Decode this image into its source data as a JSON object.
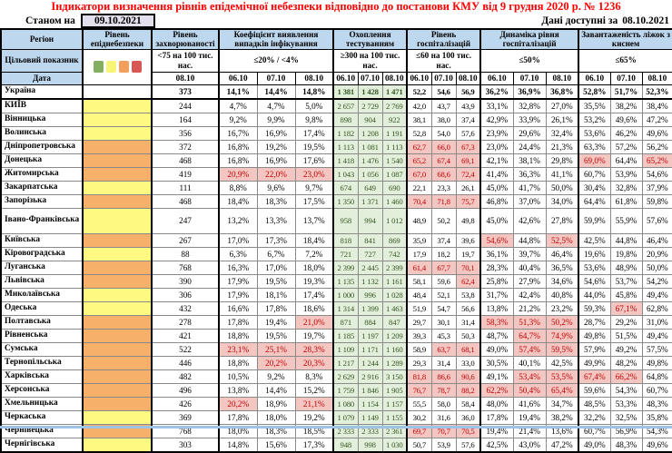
{
  "title": "Індикатори визначення рівнів епідемічної небезпеки відповідно до постанови КМУ від 9 грудня 2020 р. № 1236",
  "meta": {
    "as_of_label": "Станом на",
    "as_of_date": "09.10.2021",
    "available_label": "Дані доступні за",
    "available_date": "08.10.2021"
  },
  "colors": {
    "title_red": "#FF0000",
    "header_blue": "#BDD7EE",
    "asof_box_bg": "#E4DFEC",
    "level_yellow": "#FDF981",
    "level_orange": "#F7B06A",
    "testing_bg": "#E2EFDA",
    "testing_text": "#375623",
    "alert_bg": "#F3C6C2",
    "alert_text": "#C00000",
    "legend_green": "#84AE60",
    "legend_yellow": "#F8F575",
    "legend_orange": "#F3A05C",
    "legend_red": "#D95752",
    "bottom_strip": "#9DC3E6"
  },
  "table": {
    "col_groups": [
      {
        "title": "Регіон",
        "target": "Цільовий показник",
        "date_label": "Дата"
      },
      {
        "title": "Рівень епіднебезпеки"
      },
      {
        "title": "Рівень захворюваності",
        "target": "<75 на 100 тис. нас.",
        "dates": [
          "08.10"
        ]
      },
      {
        "title": "Коефіцієнт виявлення випадків інфікування",
        "target": "≤20% / <4%",
        "dates": [
          "06.10",
          "07.10",
          "08.10"
        ]
      },
      {
        "title": "Охоплення тестуванням",
        "target": "≥300 на 100 тис. нас.",
        "dates": [
          "06.10",
          "07.10",
          "08.10"
        ]
      },
      {
        "title": "Рівень госпіталізацій",
        "target": "≤60 на 100 тис. нас.",
        "dates": [
          "06.10",
          "07.10",
          "08.10"
        ]
      },
      {
        "title": "Динаміка рівня госпіталізацій",
        "target": "≤50%",
        "dates": [
          "06.10",
          "07.10",
          "08.10"
        ]
      },
      {
        "title": "Завантаженість ліжок з киснем",
        "target": "≤65%",
        "dates": [
          "06.10",
          "07.10",
          "08.10"
        ]
      }
    ],
    "rows": [
      {
        "region": "Україна",
        "level": null,
        "bold": true,
        "incidence": "373",
        "detection": [
          "14,1%",
          "14,4%",
          "14,8%"
        ],
        "testing": [
          "1 381",
          "1 428",
          "1 471"
        ],
        "hosp": [
          "52,2",
          "54,6",
          "56,9"
        ],
        "dyn": [
          "36,2%",
          "36,9%",
          "36,8%"
        ],
        "beds": [
          "52,8%",
          "51,7%",
          "52,3%"
        ]
      },
      {
        "region": "КИЇВ",
        "level": "yellow",
        "incidence": "244",
        "detection": [
          "4,7%",
          "4,7%",
          "5,0%"
        ],
        "testing": [
          "2 657",
          "2 729",
          "2 769"
        ],
        "hosp": [
          "42,0",
          "43,7",
          "43,9"
        ],
        "dyn": [
          "33,1%",
          "32,8%",
          "27,0%"
        ],
        "beds": [
          "35,5%",
          "38,2%",
          "38,4%"
        ]
      },
      {
        "region": "Вінницька",
        "level": "yellow",
        "incidence": "164",
        "detection": [
          "9,2%",
          "9,9%",
          "9,8%"
        ],
        "testing": [
          "898",
          "904",
          "922"
        ],
        "hosp": [
          "38,1",
          "38,0",
          "37,4"
        ],
        "dyn": [
          "42,9%",
          "33,9%",
          "26,1%"
        ],
        "beds": [
          "53,2%",
          "49,6%",
          "47,2%"
        ]
      },
      {
        "region": "Волинська",
        "level": "yellow",
        "incidence": "356",
        "detection": [
          "16,7%",
          "16,9%",
          "17,4%"
        ],
        "testing": [
          "1 182",
          "1 208",
          "1 191"
        ],
        "hosp": [
          "52,8",
          "54,0",
          "57,6"
        ],
        "dyn": [
          "23,9%",
          "29,6%",
          "32,4%"
        ],
        "beds": [
          "53,6%",
          "46,2%",
          "49,6%"
        ]
      },
      {
        "region": "Дніпропетровська",
        "level": "orange",
        "incidence": "372",
        "detection": [
          "16,8%",
          "19,2%",
          "19,5%"
        ],
        "testing": [
          "1 113",
          "1 081",
          "1 113"
        ],
        "hosp": [
          {
            "v": "62,7",
            "a": 1
          },
          {
            "v": "66,0",
            "a": 1
          },
          {
            "v": "67,3",
            "a": 1
          }
        ],
        "dyn": [
          "23,0%",
          "24,4%",
          "21,3%"
        ],
        "beds": [
          "63,3%",
          "57,2%",
          "56,2%"
        ]
      },
      {
        "region": "Донецька",
        "level": "orange",
        "incidence": "468",
        "detection": [
          "16,8%",
          "16,9%",
          "17,6%"
        ],
        "testing": [
          "1 418",
          "1 476",
          "1 540"
        ],
        "hosp": [
          {
            "v": "65,2",
            "a": 1
          },
          {
            "v": "67,4",
            "a": 1
          },
          {
            "v": "69,1",
            "a": 1
          }
        ],
        "dyn": [
          "42,1%",
          "38,1%",
          "29,8%"
        ],
        "beds": [
          {
            "v": "69,0%",
            "a": 1
          },
          "64,4%",
          {
            "v": "65,2%",
            "a": 1
          }
        ]
      },
      {
        "region": "Житомирська",
        "level": "orange",
        "incidence": "419",
        "detection": [
          {
            "v": "20,9%",
            "a": 1
          },
          {
            "v": "22,0%",
            "a": 1
          },
          {
            "v": "23,0%",
            "a": 1
          }
        ],
        "testing": [
          "1 043",
          "1 056",
          "1 087"
        ],
        "hosp": [
          {
            "v": "67,0",
            "a": 1
          },
          {
            "v": "68,6",
            "a": 1
          },
          {
            "v": "72,4",
            "a": 1
          }
        ],
        "dyn": [
          "41,4%",
          "36,3%",
          "41,1%"
        ],
        "beds": [
          "60,7%",
          "53,9%",
          "54,6%"
        ]
      },
      {
        "region": "Закарпатська",
        "level": "yellow",
        "incidence": "111",
        "detection": [
          "8,8%",
          "9,6%",
          "9,7%"
        ],
        "testing": [
          "674",
          "649",
          "690"
        ],
        "hosp": [
          "22,1",
          "23,3",
          "26,1"
        ],
        "dyn": [
          "45,0%",
          "41,7%",
          "50,0%"
        ],
        "beds": [
          "30,4%",
          "32,8%",
          "37,9%"
        ]
      },
      {
        "region": "Запорізька",
        "level": "orange",
        "incidence": "468",
        "detection": [
          "18,4%",
          "18,3%",
          "17,5%"
        ],
        "testing": [
          "1 350",
          "1 371",
          "1 460"
        ],
        "hosp": [
          {
            "v": "70,4",
            "a": 1
          },
          {
            "v": "71,8",
            "a": 1
          },
          {
            "v": "75,7",
            "a": 1
          }
        ],
        "dyn": [
          "46,8%",
          "37,0%",
          "34,0%"
        ],
        "beds": [
          "64,4%",
          "61,8%",
          "59,8%"
        ]
      },
      {
        "region": "Івано-Франківська",
        "level": "yellow",
        "tall": true,
        "incidence": "247",
        "detection": [
          "13,2%",
          "13,3%",
          "13,7%"
        ],
        "testing": [
          "958",
          "994",
          "1 012"
        ],
        "hosp": [
          "48,9",
          "50,2",
          "49,8"
        ],
        "dyn": [
          "45,0%",
          "42,6%",
          "27,8%"
        ],
        "beds": [
          "59,9%",
          "55,9%",
          "57,6%"
        ]
      },
      {
        "region": "Київська",
        "level": "orange",
        "incidence": "267",
        "detection": [
          "17,0%",
          "17,3%",
          "18,4%"
        ],
        "testing": [
          "818",
          "841",
          "869"
        ],
        "hosp": [
          "35,9",
          "37,4",
          "39,6"
        ],
        "dyn": [
          {
            "v": "54,6%",
            "a": 1
          },
          "44,8%",
          {
            "v": "52,5%",
            "a": 1
          }
        ],
        "beds": [
          "42,5%",
          "44,8%",
          "46,4%"
        ]
      },
      {
        "region": "Кіровоградська",
        "level": "yellow",
        "incidence": "88",
        "detection": [
          "6,3%",
          "6,7%",
          "7,2%"
        ],
        "testing": [
          "721",
          "727",
          "742"
        ],
        "hosp": [
          "17,9",
          "18,2",
          "19,7"
        ],
        "dyn": [
          "36,1%",
          "39,7%",
          "46,4%"
        ],
        "beds": [
          "19,6%",
          "19,8%",
          "20,9%"
        ]
      },
      {
        "region": "Луганська",
        "level": "orange",
        "incidence": "768",
        "detection": [
          "16,3%",
          "17,0%",
          "18,0%"
        ],
        "testing": [
          "2 399",
          "2 445",
          "2 399"
        ],
        "hosp": [
          {
            "v": "61,4",
            "a": 1
          },
          {
            "v": "67,7",
            "a": 1
          },
          {
            "v": "70,1",
            "a": 1
          }
        ],
        "dyn": [
          "28,3%",
          "40,4%",
          "36,5%"
        ],
        "beds": [
          "53,6%",
          "48,9%",
          "50,0%"
        ]
      },
      {
        "region": "Львівська",
        "level": "orange",
        "incidence": "390",
        "detection": [
          "17,9%",
          "19,5%",
          "19,3%"
        ],
        "testing": [
          "1 135",
          "1 132",
          "1 161"
        ],
        "hosp": [
          "58,1",
          "59,6",
          {
            "v": "62,4",
            "a": 1
          }
        ],
        "dyn": [
          "25,8%",
          "27,9%",
          "34,6%"
        ],
        "beds": [
          "54,6%",
          "53,7%",
          "54,2%"
        ]
      },
      {
        "region": "Миколаївська",
        "level": "yellow",
        "incidence": "306",
        "detection": [
          "17,9%",
          "18,1%",
          "17,4%"
        ],
        "testing": [
          "1 000",
          "996",
          "1 028"
        ],
        "hosp": [
          "48,4",
          "52,1",
          "53,8"
        ],
        "dyn": [
          "31,7%",
          "42,4%",
          "40,8%"
        ],
        "beds": [
          "44,0%",
          "45,8%",
          "49,4%"
        ]
      },
      {
        "region": "Одеська",
        "level": "yellow",
        "incidence": "432",
        "detection": [
          "16,6%",
          "17,8%",
          "18,6%"
        ],
        "testing": [
          "1 314",
          "1 399",
          "1 463"
        ],
        "hosp": [
          "51,9",
          "54,7",
          "56,6"
        ],
        "dyn": [
          "13,8%",
          "21,2%",
          "23,2%"
        ],
        "beds": [
          "59,3%",
          {
            "v": "67,1%",
            "a": 1
          },
          "62,8%"
        ]
      },
      {
        "region": "Полтавська",
        "level": "orange",
        "incidence": "278",
        "detection": [
          "17,8%",
          "19,4%",
          {
            "v": "21,0%",
            "a": 1
          }
        ],
        "testing": [
          "871",
          "884",
          "847"
        ],
        "hosp": [
          "29,7",
          "30,1",
          "31,4"
        ],
        "dyn": [
          {
            "v": "58,3%",
            "a": 1
          },
          {
            "v": "51,3%",
            "a": 1
          },
          {
            "v": "50,2%",
            "a": 1
          }
        ],
        "beds": [
          "28,7%",
          "29,2%",
          "31,0%"
        ]
      },
      {
        "region": "Рівненська",
        "level": "orange",
        "incidence": "421",
        "detection": [
          "18,8%",
          "19,5%",
          "19,7%"
        ],
        "testing": [
          "1 185",
          "1 197",
          "1 209"
        ],
        "hosp": [
          "39,3",
          "45,3",
          "50,3"
        ],
        "dyn": [
          "48,7%",
          {
            "v": "64,7%",
            "a": 1
          },
          {
            "v": "74,9%",
            "a": 1
          }
        ],
        "beds": [
          "49,8%",
          "51,5%",
          "49,4%"
        ]
      },
      {
        "region": "Сумська",
        "level": "orange",
        "incidence": "522",
        "detection": [
          {
            "v": "23,1%",
            "a": 1
          },
          {
            "v": "25,1%",
            "a": 1
          },
          {
            "v": "28,3%",
            "a": 1
          }
        ],
        "testing": [
          "1 109",
          "1 171",
          "1 160"
        ],
        "hosp": [
          "58,9",
          {
            "v": "63,7",
            "a": 1
          },
          {
            "v": "68,1",
            "a": 1
          }
        ],
        "dyn": [
          "49,0%",
          {
            "v": "57,4%",
            "a": 1
          },
          {
            "v": "59,5%",
            "a": 1
          }
        ],
        "beds": [
          "57,9%",
          "49,2%",
          "57,5%"
        ]
      },
      {
        "region": "Тернопільська",
        "level": "orange",
        "incidence": "446",
        "detection": [
          "18,8%",
          {
            "v": "20,2%",
            "a": 1
          },
          {
            "v": "20,3%",
            "a": 1
          }
        ],
        "testing": [
          "1 217",
          "1 244",
          "1 289"
        ],
        "hosp": [
          "29,3",
          "31,4",
          "33,0"
        ],
        "dyn": [
          "30,5%",
          "40,1%",
          "42,5%"
        ],
        "beds": [
          "49,9%",
          "48,2%",
          "49,8%"
        ]
      },
      {
        "region": "Харківська",
        "level": "orange",
        "incidence": "482",
        "detection": [
          "10,5%",
          "9,2%",
          "8,3%"
        ],
        "testing": [
          "2 629",
          "2 916",
          "3 150"
        ],
        "hosp": [
          {
            "v": "81,8",
            "a": 1
          },
          {
            "v": "86,6",
            "a": 1
          },
          {
            "v": "90,6",
            "a": 1
          }
        ],
        "dyn": [
          "49,1%",
          {
            "v": "53,4%",
            "a": 1
          },
          {
            "v": "53,5%",
            "a": 1
          }
        ],
        "beds": [
          {
            "v": "67,4%",
            "a": 1
          },
          {
            "v": "66,2%",
            "a": 1
          },
          "64,8%"
        ]
      },
      {
        "region": "Херсонська",
        "level": "orange",
        "incidence": "496",
        "detection": [
          "13,8%",
          "14,4%",
          "15,2%"
        ],
        "testing": [
          "1 759",
          "1 846",
          "1 905"
        ],
        "hosp": [
          {
            "v": "76,7",
            "a": 1
          },
          {
            "v": "78,7",
            "a": 1
          },
          {
            "v": "88,2",
            "a": 1
          }
        ],
        "dyn": [
          {
            "v": "62,2%",
            "a": 1
          },
          {
            "v": "50,4%",
            "a": 1
          },
          {
            "v": "65,4%",
            "a": 1
          }
        ],
        "beds": [
          "59,6%",
          "54,3%",
          "60,7%"
        ]
      },
      {
        "region": "Хмельницька",
        "level": "orange",
        "incidence": "426",
        "detection": [
          {
            "v": "20,2%",
            "a": 1
          },
          "18,9%",
          {
            "v": "21,1%",
            "a": 1
          }
        ],
        "testing": [
          "1 080",
          "1 154",
          "1 157"
        ],
        "hosp": [
          "55,5",
          "58,0",
          "58,4"
        ],
        "dyn": [
          "48,0%",
          "41,6%",
          "34,7%"
        ],
        "beds": [
          "48,5%",
          "53,3%",
          "48,3%"
        ]
      },
      {
        "region": "Черкаська",
        "level": "yellow",
        "incidence": "369",
        "detection": [
          "17,8%",
          "18,0%",
          "19,2%"
        ],
        "testing": [
          "1 079",
          "1 149",
          "1 155"
        ],
        "hosp": [
          "30,2",
          "31,6",
          "36,0"
        ],
        "dyn": [
          "17,8%",
          "19,4%",
          "38,2%"
        ],
        "beds": [
          "32,2%",
          "32,5%",
          "35,8%"
        ]
      },
      {
        "region": "Чернівецька",
        "level": "orange",
        "incidence": "768",
        "detection": [
          "18,0%",
          "18,3%",
          "18,5%"
        ],
        "testing": [
          "2 333",
          "2 333",
          "2 361"
        ],
        "hosp": [
          {
            "v": "69,7",
            "a": 1
          },
          {
            "v": "70,7",
            "a": 1
          },
          {
            "v": "70,5",
            "a": 1
          }
        ],
        "dyn": [
          "19,4%",
          "21,4%",
          "13,6%"
        ],
        "beds": [
          "60,7%",
          "56,9%",
          "54,3%"
        ]
      },
      {
        "region": "Чернігівська",
        "level": "yellow",
        "incidence": "303",
        "detection": [
          "14,8%",
          "15,6%",
          "17,3%"
        ],
        "testing": [
          "948",
          "998",
          "1 030"
        ],
        "hosp": [
          "50,7",
          "53,9",
          "57,6"
        ],
        "dyn": [
          "42,5%",
          "43,0%",
          "47,2%"
        ],
        "beds": [
          "49,0%",
          "48,3%",
          "49,6%"
        ]
      }
    ]
  }
}
